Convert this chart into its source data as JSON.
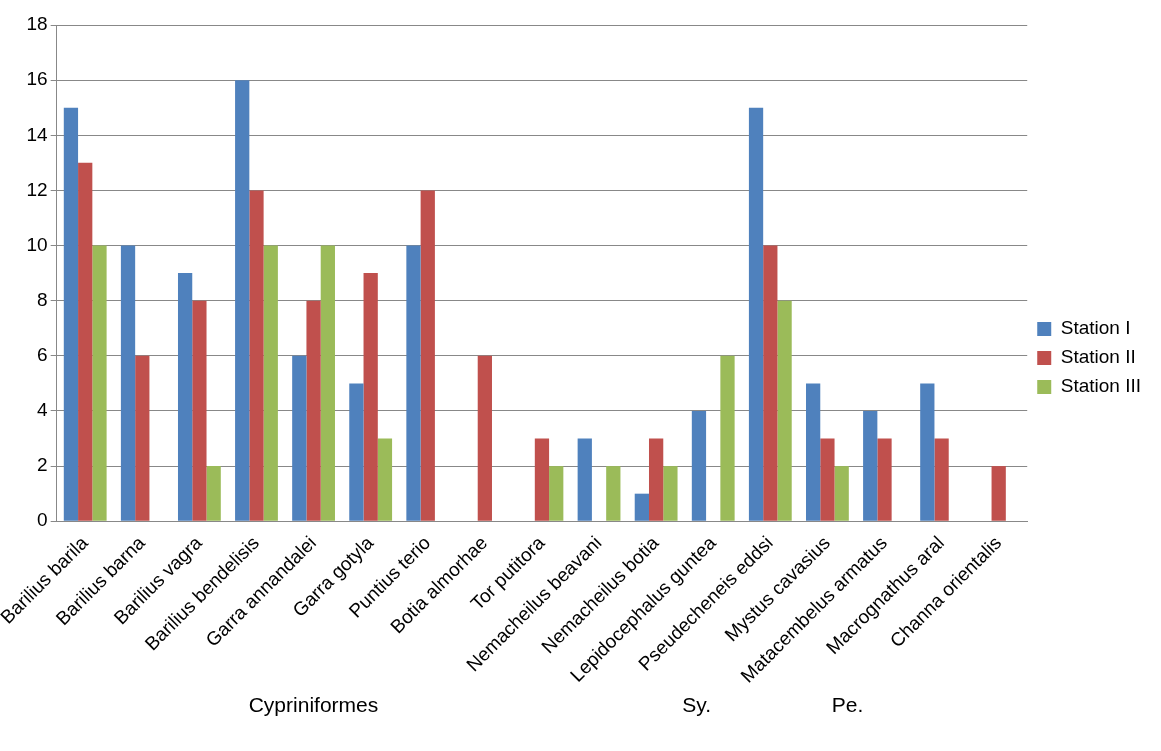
{
  "chart_data": {
    "type": "bar",
    "categories": [
      "Barilius barila",
      "Barilius barna",
      "Barilius vagra",
      "Barilius bendelisis",
      "Garra annandalei",
      "Garra gotyla",
      "Puntius terio",
      "Botia almorhae",
      "Tor putitora",
      "Nemacheilus beavani",
      "Nemacheilus botia",
      "Lepidocephalus guntea",
      "Pseudecheneis eddsi",
      "Mystus cavasius",
      "Matacembelus armatus",
      "Macrognathus aral",
      "Channa orientalis"
    ],
    "series": [
      {
        "name": "Station I",
        "color": "#4f81bd",
        "values": [
          15,
          10,
          9,
          16,
          6,
          5,
          10,
          0,
          0,
          3,
          1,
          4,
          15,
          5,
          4,
          5,
          0
        ]
      },
      {
        "name": "Station II",
        "color": "#c0504d",
        "values": [
          13,
          6,
          8,
          12,
          8,
          9,
          12,
          6,
          3,
          0,
          3,
          0,
          10,
          3,
          3,
          3,
          2
        ]
      },
      {
        "name": "Station III",
        "color": "#9bbb59",
        "values": [
          10,
          0,
          2,
          10,
          10,
          3,
          0,
          0,
          2,
          2,
          2,
          6,
          8,
          2,
          0,
          0,
          0
        ]
      }
    ],
    "ylim": [
      0,
      18
    ],
    "yticks": [
      0,
      2,
      4,
      6,
      8,
      10,
      12,
      14,
      16,
      18
    ],
    "grid": "y",
    "legend": "right",
    "annotations": [
      "Cypriniformes",
      "Sy.",
      "Pe."
    ]
  }
}
